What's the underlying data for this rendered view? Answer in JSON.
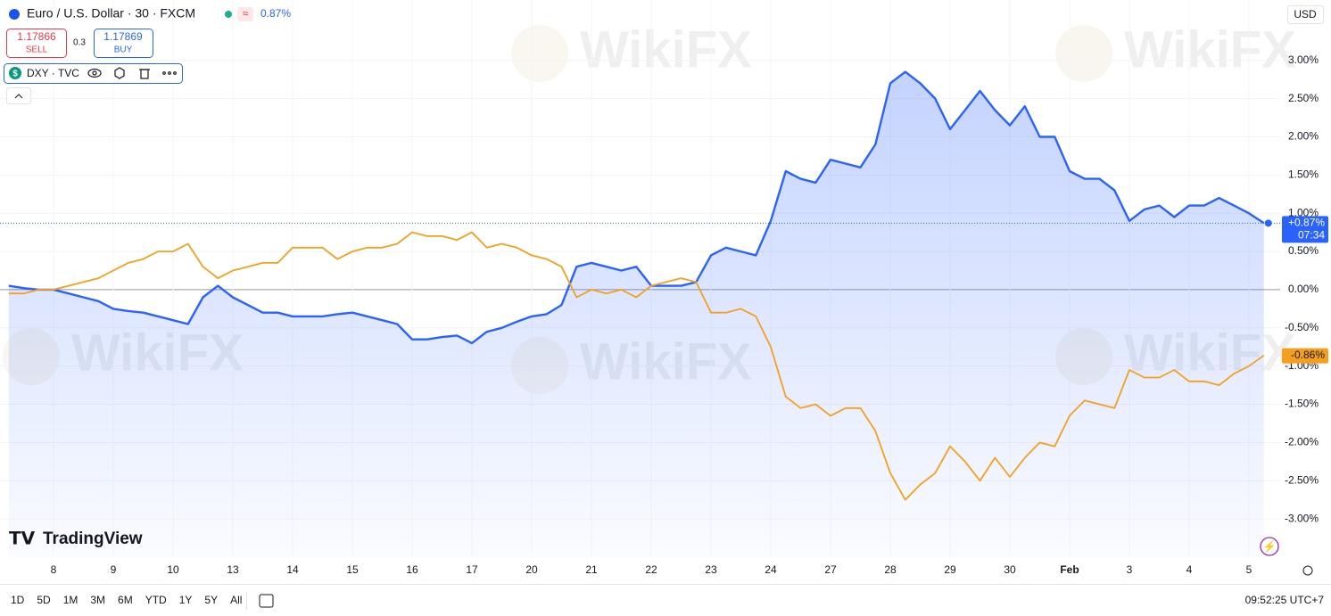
{
  "header": {
    "symbol": "Euro / U.S. Dollar · 30 · FXCM",
    "change": "0.87%",
    "sell_price": "1.17866",
    "sell": "SELL",
    "spread": "0.3",
    "buy_price": "1.17869",
    "buy": "BUY",
    "currency": "USD",
    "watermark": "WikiFX"
  },
  "chart_data": {
    "type": "line",
    "categories": [
      null,
      null,
      null,
      "8",
      null,
      null,
      null,
      "9",
      null,
      null,
      null,
      "10",
      null,
      null,
      null,
      "13",
      null,
      null,
      null,
      "14",
      null,
      null,
      null,
      "15",
      null,
      null,
      null,
      "16",
      null,
      null,
      null,
      "17",
      null,
      null,
      null,
      "20",
      null,
      null,
      null,
      "21",
      null,
      null,
      null,
      "22",
      null,
      null,
      null,
      "23",
      null,
      null,
      null,
      "24",
      null,
      null,
      null,
      "27",
      null,
      null,
      null,
      "28",
      null,
      null,
      null,
      "29",
      null,
      null,
      null,
      "30",
      null,
      null,
      null,
      "Feb",
      null,
      null,
      null,
      "3",
      null,
      null,
      null,
      "4",
      null,
      null,
      null,
      "5",
      null
    ],
    "series": [
      {
        "name": "Euro / U.S. Dollar · 30 · FXCM",
        "color": "#2962ff",
        "area": true,
        "last_label": "+0.87%",
        "values": [
          0.05,
          0.02,
          0.0,
          0.0,
          -0.05,
          -0.1,
          -0.15,
          -0.25,
          -0.28,
          -0.3,
          -0.35,
          -0.4,
          -0.45,
          -0.1,
          0.05,
          -0.1,
          -0.2,
          -0.3,
          -0.3,
          -0.35,
          -0.35,
          -0.35,
          -0.32,
          -0.3,
          -0.35,
          -0.4,
          -0.45,
          -0.65,
          -0.65,
          -0.62,
          -0.6,
          -0.7,
          -0.55,
          -0.5,
          -0.42,
          -0.35,
          -0.32,
          -0.2,
          0.3,
          0.35,
          0.3,
          0.25,
          0.3,
          0.05,
          0.05,
          0.05,
          0.1,
          0.45,
          0.55,
          0.5,
          0.45,
          0.9,
          1.55,
          1.45,
          1.4,
          1.7,
          1.65,
          1.6,
          1.9,
          2.7,
          2.85,
          2.7,
          2.5,
          2.1,
          2.35,
          2.6,
          2.35,
          2.15,
          2.4,
          2.0,
          2.0,
          1.55,
          1.45,
          1.45,
          1.3,
          0.9,
          1.05,
          1.1,
          0.95,
          1.1,
          1.1,
          1.2,
          1.1,
          1.0,
          0.87
        ]
      },
      {
        "name": "DXY · TVC",
        "color": "#f4a01c",
        "area": false,
        "last_label": "-0.86%",
        "values": [
          -0.05,
          -0.05,
          0.0,
          0.0,
          0.05,
          0.1,
          0.15,
          0.25,
          0.35,
          0.4,
          0.5,
          0.5,
          0.6,
          0.3,
          0.15,
          0.25,
          0.3,
          0.35,
          0.35,
          0.55,
          0.55,
          0.55,
          0.4,
          0.5,
          0.55,
          0.55,
          0.6,
          0.75,
          0.7,
          0.7,
          0.65,
          0.75,
          0.55,
          0.6,
          0.55,
          0.45,
          0.4,
          0.3,
          -0.1,
          0.0,
          -0.05,
          0.0,
          -0.1,
          0.05,
          0.1,
          0.15,
          0.1,
          -0.3,
          -0.3,
          -0.25,
          -0.35,
          -0.75,
          -1.4,
          -1.55,
          -1.5,
          -1.65,
          -1.55,
          -1.55,
          -1.85,
          -2.4,
          -2.75,
          -2.55,
          -2.4,
          -2.05,
          -2.25,
          -2.5,
          -2.2,
          -2.45,
          -2.2,
          -2.0,
          -2.05,
          -1.65,
          -1.45,
          -1.5,
          -1.55,
          -1.05,
          -1.15,
          -1.15,
          -1.05,
          -1.2,
          -1.2,
          -1.25,
          -1.1,
          -1.0,
          -0.86
        ]
      }
    ],
    "countdown": "07:34",
    "ylim": [
      -3.5,
      3.79
    ],
    "yticks": [
      {
        "value": 3,
        "label": "3.00%"
      },
      {
        "value": 2.5,
        "label": "2.50%"
      },
      {
        "value": 2,
        "label": "2.00%"
      },
      {
        "value": 1.5,
        "label": "1.50%"
      },
      {
        "value": 1,
        "label": "1.00%"
      },
      {
        "value": 0.5,
        "label": "0.50%"
      },
      {
        "value": 0,
        "label": "0.00%"
      },
      {
        "value": -0.5,
        "label": "-0.50%"
      },
      {
        "value": -1,
        "label": "-1.00%"
      },
      {
        "value": -1.5,
        "label": "-1.50%"
      },
      {
        "value": -2,
        "label": "-2.00%"
      },
      {
        "value": -2.5,
        "label": "-2.50%"
      },
      {
        "value": -3,
        "label": "-3.00%"
      }
    ],
    "grid": true
  },
  "footer": {
    "brand": "TradingView",
    "ranges": [
      "1D",
      "5D",
      "1M",
      "3M",
      "6M",
      "YTD",
      "1Y",
      "5Y",
      "All"
    ],
    "clock": "09:52:25 UTC+7"
  }
}
